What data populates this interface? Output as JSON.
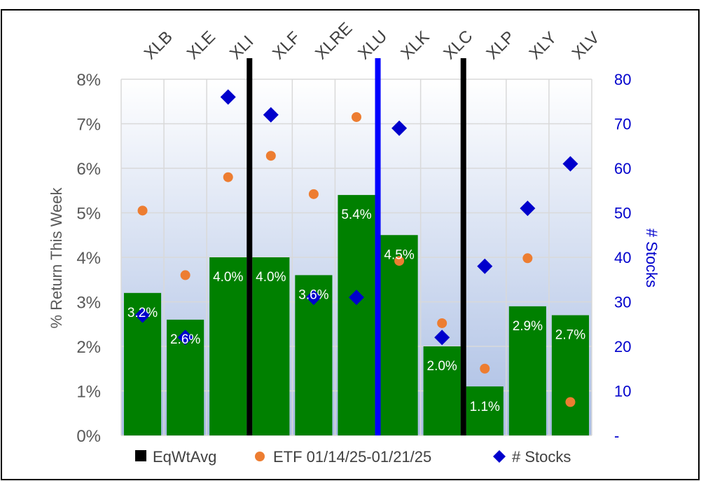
{
  "chart_data": {
    "type": "bar",
    "categories": [
      "XLB",
      "XLE",
      "XLI",
      "XLF",
      "XLRE",
      "XLU",
      "XLK",
      "XLC",
      "XLP",
      "XLY",
      "XLV"
    ],
    "series": [
      {
        "name": "EqWtAvg",
        "kind": "bar",
        "color": "#008000",
        "values": [
          3.2,
          2.6,
          4.0,
          4.0,
          3.6,
          5.4,
          4.5,
          2.0,
          1.1,
          2.9,
          2.7
        ],
        "labels": [
          "3.2%",
          "2.6%",
          "4.0%",
          "4.0%",
          "3.6%",
          "5.4%",
          "4.5%",
          "2.0%",
          "1.1%",
          "2.9%",
          "2.7%"
        ]
      },
      {
        "name": "ETF 01/14/25-01/21/25",
        "kind": "scatter",
        "marker": "circle",
        "color": "#ed7d31",
        "values": [
          5.05,
          3.6,
          5.8,
          6.28,
          5.42,
          7.15,
          3.92,
          2.52,
          1.5,
          3.98,
          0.75
        ]
      },
      {
        "name": "# Stocks",
        "kind": "scatter",
        "marker": "diamond",
        "axis": "secondary",
        "color": "#0000cc",
        "values": [
          27,
          22,
          76,
          72,
          31,
          31,
          69,
          22,
          38,
          51,
          61
        ]
      }
    ],
    "ylabel": "% Return This Week",
    "ylim": [
      0,
      8
    ],
    "yticks": [
      "0%",
      "1%",
      "2%",
      "3%",
      "4%",
      "5%",
      "6%",
      "7%",
      "8%"
    ],
    "y2label": "# Stocks",
    "y2lim": [
      0,
      80
    ],
    "y2ticks": [
      "-",
      "10",
      "20",
      "30",
      "40",
      "50",
      "60",
      "70",
      "80"
    ],
    "separators": [
      {
        "after": "XLI",
        "color": "#000000"
      },
      {
        "after": "XLU",
        "color": "#0000ff"
      },
      {
        "after": "XLC",
        "color": "#000000"
      }
    ],
    "grid": true,
    "legend_position": "bottom",
    "background": "gradient-white-to-lightblue"
  }
}
